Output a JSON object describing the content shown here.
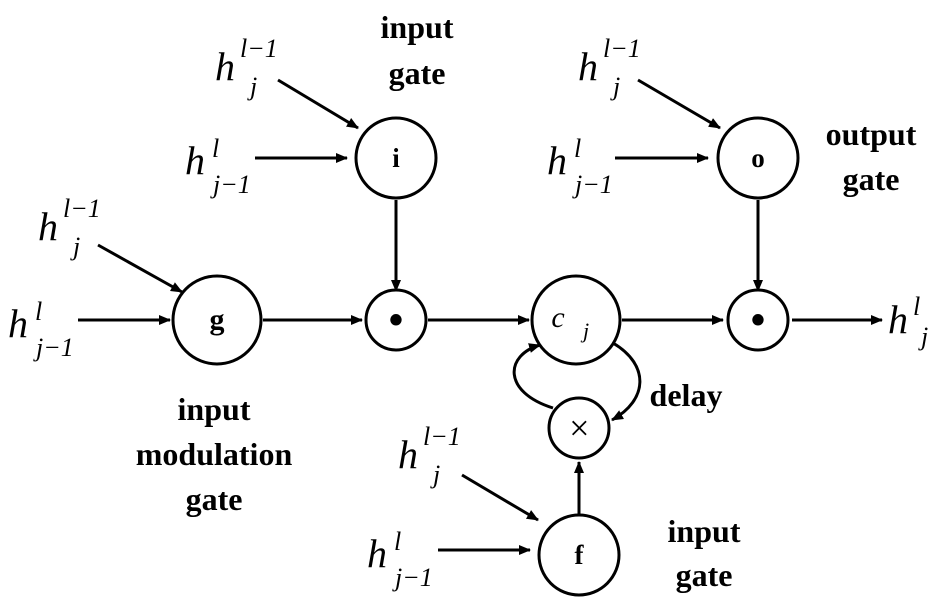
{
  "labels": {
    "input_gate_top_line1": "input",
    "input_gate_top_line2": "gate",
    "output_gate_line1": "output",
    "output_gate_line2": "gate",
    "modulation_line1": "input",
    "modulation_line2": "modulation",
    "modulation_line3": "gate",
    "input_gate_bottom_line1": "input",
    "input_gate_bottom_line2": "gate",
    "delay": "delay"
  },
  "nodes": {
    "i": "i",
    "o": "o",
    "g": "g",
    "f": "f",
    "mult_input": "•",
    "mult_output": "•",
    "mult_forget": "×",
    "cell_base": "c",
    "cell_sub": "j"
  },
  "math": {
    "h": "h",
    "sup_prev_layer": "l−1",
    "sub_same": "j",
    "sup_same_layer": "l",
    "sub_prev_step": "j−1",
    "output_sup": "l",
    "output_sub": "j"
  }
}
